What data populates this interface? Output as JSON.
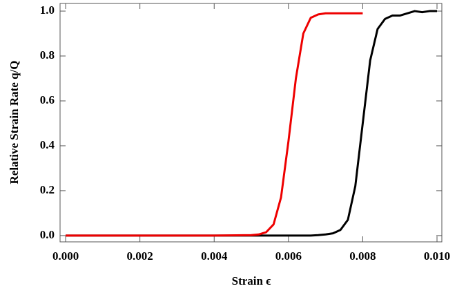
{
  "chart_data": {
    "type": "line",
    "x_label": "Strain ϵ",
    "y_label": "Relative Strain Rate q/Q",
    "x": [
      0,
      0.001,
      0.002,
      0.003,
      0.004,
      0.005,
      0.0052,
      0.0054,
      0.0056,
      0.0058,
      0.006,
      0.0062,
      0.0064,
      0.0066,
      0.0068,
      0.007,
      0.0072,
      0.0074,
      0.0076,
      0.0078,
      0.008,
      0.0082,
      0.0084,
      0.0086,
      0.0088,
      0.009,
      0.0092,
      0.0094,
      0.0096,
      0.0098,
      0.01
    ],
    "series": [
      {
        "color": "#000000",
        "values": [
          0,
          0,
          0,
          0,
          0,
          0,
          0,
          0,
          0,
          0,
          0,
          0,
          0,
          0,
          0.002,
          0.005,
          0.01,
          0.025,
          0.07,
          0.22,
          0.5,
          0.78,
          0.92,
          0.965,
          0.98,
          0.98,
          0.99,
          1.0,
          0.995,
          1.0,
          1.0
        ]
      },
      {
        "color": "#ee0000",
        "values": [
          0,
          0,
          0,
          0,
          0,
          0.002,
          0.005,
          0.015,
          0.05,
          0.17,
          0.42,
          0.7,
          0.9,
          0.97,
          0.985,
          0.99,
          0.99,
          0.99,
          0.99,
          0.99,
          0.99,
          null,
          null,
          null,
          null,
          null,
          null,
          null,
          null,
          null,
          null
        ]
      }
    ],
    "xlim": [
      -0.00015,
      0.01013
    ],
    "ylim": [
      -0.028,
      1.034
    ],
    "xticks": [
      {
        "value": 0,
        "label": "0.000"
      },
      {
        "value": 0.002,
        "label": "0.002"
      },
      {
        "value": 0.004,
        "label": "0.004"
      },
      {
        "value": 0.006,
        "label": "0.006"
      },
      {
        "value": 0.008,
        "label": "0.008"
      },
      {
        "value": 0.01,
        "label": "0.010"
      }
    ],
    "yticks": [
      {
        "value": 0,
        "label": "0.0"
      },
      0.2,
      0.4,
      0.6,
      0.8,
      {
        "value": 1,
        "label": "1.0"
      }
    ],
    "grid": false
  }
}
